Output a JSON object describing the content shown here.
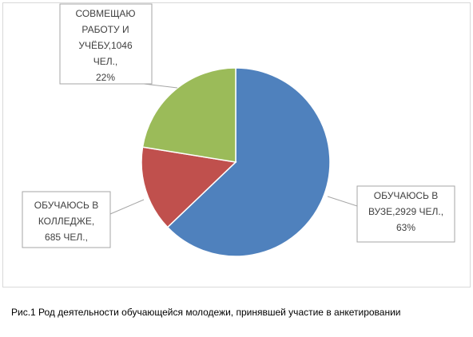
{
  "chart_data": {
    "type": "pie",
    "values": [
      2929,
      685,
      1046
    ],
    "value_labels": [
      [
        "ОБУЧАЮСЬ В",
        "ВУЗЕ,2929 ЧЕЛ.,",
        "63%"
      ],
      [
        "ОБУЧАЮСЬ В",
        "КОЛЛЕДЖЕ,",
        "685 ЧЕЛ.,"
      ],
      [
        "СОВМЕЩАЮ",
        "РАБОТУ И",
        "УЧЁБУ,1046",
        "ЧЕЛ.,",
        "22%"
      ]
    ],
    "colors": [
      "#4f81bd",
      "#c0504d",
      "#9bbb59"
    ],
    "caption": "Рис.1  Род деятельности обучающейся молодежи, принявшей участие в анкетировании"
  }
}
